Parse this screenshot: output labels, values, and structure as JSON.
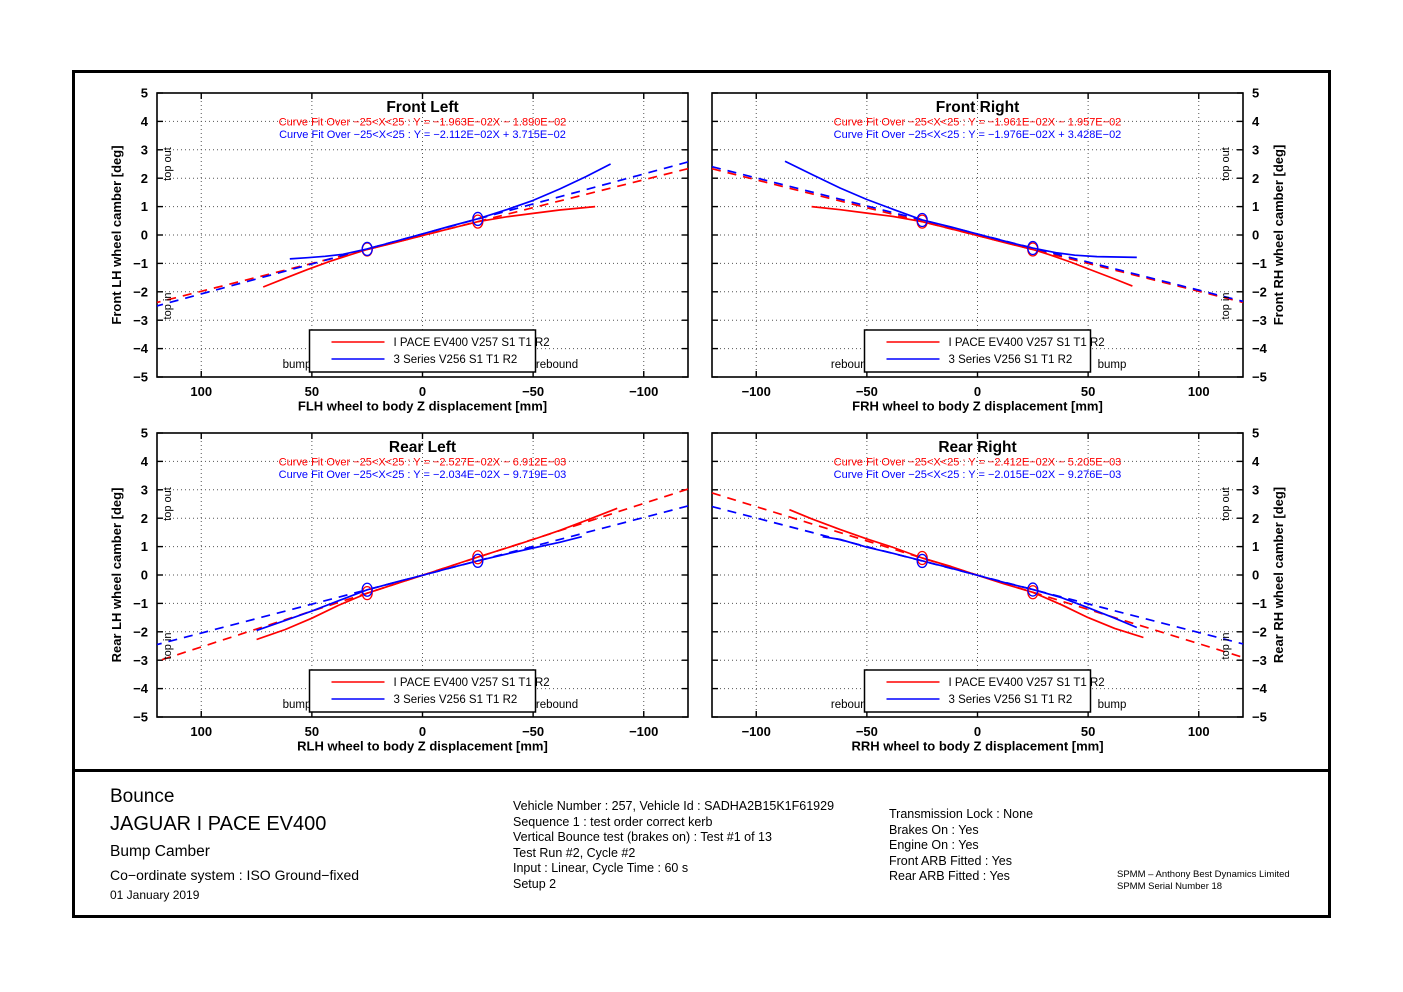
{
  "colors": {
    "ipace": "#ff0000",
    "series3": "#0000ff",
    "axis": "#000000",
    "grid": "#555555"
  },
  "chart_data": [
    {
      "type": "line",
      "title": "Front Left",
      "xlabel": "FLH wheel to body Z displacement [mm]",
      "ylabel": "Front LH wheel camber [deg]",
      "ylabel_side": "left",
      "x_reversed": true,
      "xlim": [
        -120,
        120
      ],
      "ylim": [
        -5,
        5
      ],
      "xticks": [
        -100,
        -50,
        0,
        50,
        100
      ],
      "yticks": [
        -5,
        -4,
        -3,
        -2,
        -1,
        0,
        1,
        2,
        3,
        4,
        5
      ],
      "grid": true,
      "fit_window": [
        -25,
        25
      ],
      "left_label": "bump",
      "right_label": "rebound",
      "top_out_label": "top out",
      "top_in_label": "top in",
      "fit_lines": [
        {
          "color": "#ff0000",
          "text": "Curve Fit Over −25<X<25 : Y = −1.963E−02X − 1.890E−02",
          "slope": -0.01963,
          "intercept": -0.0189
        },
        {
          "color": "#0000ff",
          "text": "Curve Fit Over −25<X<25 : Y = −2.112E−02X + 3.715E−02",
          "slope": -0.02112,
          "intercept": 0.03715
        }
      ],
      "series": [
        {
          "name": "I PACE EV400 V257 S1 T1 R2",
          "color": "#ff0000",
          "points": [
            [
              72,
              -1.83
            ],
            [
              62,
              -1.52
            ],
            [
              52,
              -1.22
            ],
            [
              42,
              -0.93
            ],
            [
              32,
              -0.68
            ],
            [
              25,
              -0.51
            ],
            [
              12,
              -0.26
            ],
            [
              0,
              -0.02
            ],
            [
              -12,
              0.22
            ],
            [
              -25,
              0.47
            ],
            [
              -38,
              0.64
            ],
            [
              -50,
              0.76
            ],
            [
              -62,
              0.88
            ],
            [
              -78,
              1.0
            ]
          ]
        },
        {
          "name": "3 Series V256 S1 T1 R2",
          "color": "#0000ff",
          "points": [
            [
              60,
              -0.84
            ],
            [
              52,
              -0.8
            ],
            [
              44,
              -0.75
            ],
            [
              36,
              -0.68
            ],
            [
              25,
              -0.49
            ],
            [
              12,
              -0.22
            ],
            [
              0,
              0.04
            ],
            [
              -12,
              0.3
            ],
            [
              -25,
              0.57
            ],
            [
              -38,
              0.89
            ],
            [
              -50,
              1.22
            ],
            [
              -62,
              1.62
            ],
            [
              -74,
              2.06
            ],
            [
              -85,
              2.5
            ]
          ]
        }
      ]
    },
    {
      "type": "line",
      "title": "Front Right",
      "xlabel": "FRH wheel to body Z displacement [mm]",
      "ylabel": "Front RH wheel camber [deg]",
      "ylabel_side": "right",
      "x_reversed": false,
      "xlim": [
        -120,
        120
      ],
      "ylim": [
        -5,
        5
      ],
      "xticks": [
        -100,
        -50,
        0,
        50,
        100
      ],
      "yticks": [
        -5,
        -4,
        -3,
        -2,
        -1,
        0,
        1,
        2,
        3,
        4,
        5
      ],
      "grid": true,
      "fit_window": [
        -25,
        25
      ],
      "left_label": "rebound",
      "right_label": "bump",
      "top_out_label": "top out",
      "top_in_label": "top in",
      "fit_lines": [
        {
          "color": "#ff0000",
          "text": "Curve Fit Over −25<X<25 : Y = −1.961E−02X − 1.957E−02",
          "slope": -0.01961,
          "intercept": -0.01957
        },
        {
          "color": "#0000ff",
          "text": "Curve Fit Over −25<X<25 : Y = −1.976E−02X + 3.428E−02",
          "slope": -0.01976,
          "intercept": 0.03428
        }
      ],
      "series": [
        {
          "name": "I PACE EV400 V257 S1 T1 R2",
          "color": "#ff0000",
          "points": [
            [
              -75,
              1.0
            ],
            [
              -62,
              0.89
            ],
            [
              -50,
              0.77
            ],
            [
              -38,
              0.65
            ],
            [
              -25,
              0.47
            ],
            [
              -12,
              0.22
            ],
            [
              0,
              -0.02
            ],
            [
              12,
              -0.26
            ],
            [
              25,
              -0.51
            ],
            [
              32,
              -0.68
            ],
            [
              42,
              -0.95
            ],
            [
              52,
              -1.25
            ],
            [
              62,
              -1.55
            ],
            [
              70,
              -1.8
            ]
          ]
        },
        {
          "name": "3 Series V256 S1 T1 R2",
          "color": "#0000ff",
          "points": [
            [
              -87,
              2.6
            ],
            [
              -74,
              2.1
            ],
            [
              -62,
              1.65
            ],
            [
              -50,
              1.25
            ],
            [
              -38,
              0.9
            ],
            [
              -25,
              0.53
            ],
            [
              -12,
              0.28
            ],
            [
              0,
              0.03
            ],
            [
              12,
              -0.21
            ],
            [
              25,
              -0.46
            ],
            [
              36,
              -0.63
            ],
            [
              44,
              -0.71
            ],
            [
              54,
              -0.76
            ],
            [
              72,
              -0.79
            ]
          ]
        }
      ]
    },
    {
      "type": "line",
      "title": "Rear Left",
      "xlabel": "RLH wheel to body Z displacement [mm]",
      "ylabel": "Rear LH wheel camber [deg]",
      "ylabel_side": "left",
      "x_reversed": true,
      "xlim": [
        -120,
        120
      ],
      "ylim": [
        -5,
        5
      ],
      "xticks": [
        -100,
        -50,
        0,
        50,
        100
      ],
      "yticks": [
        -5,
        -4,
        -3,
        -2,
        -1,
        0,
        1,
        2,
        3,
        4,
        5
      ],
      "grid": true,
      "fit_window": [
        -25,
        25
      ],
      "left_label": "bump",
      "right_label": "rebound",
      "top_out_label": "top out",
      "top_in_label": "top in",
      "fit_lines": [
        {
          "color": "#ff0000",
          "text": "Curve Fit Over −25<X<25 : Y = −2.527E−02X − 6.912E−03",
          "slope": -0.02527,
          "intercept": -0.006912
        },
        {
          "color": "#0000ff",
          "text": "Curve Fit Over −25<X<25 : Y = −2.034E−02X − 9.719E−03",
          "slope": -0.02034,
          "intercept": -0.009719
        }
      ],
      "series": [
        {
          "name": "I PACE EV400 V257 S1 T1 R2",
          "color": "#ff0000",
          "points": [
            [
              75,
              -2.27
            ],
            [
              62,
              -1.92
            ],
            [
              50,
              -1.52
            ],
            [
              38,
              -1.07
            ],
            [
              25,
              -0.64
            ],
            [
              12,
              -0.31
            ],
            [
              0,
              -0.01
            ],
            [
              -12,
              0.3
            ],
            [
              -25,
              0.63
            ],
            [
              -38,
              0.95
            ],
            [
              -50,
              1.25
            ],
            [
              -62,
              1.57
            ],
            [
              -75,
              1.95
            ],
            [
              -88,
              2.35
            ]
          ]
        },
        {
          "name": "3 Series V256 S1 T1 R2",
          "color": "#0000ff",
          "points": [
            [
              75,
              -1.95
            ],
            [
              62,
              -1.6
            ],
            [
              50,
              -1.27
            ],
            [
              38,
              -0.91
            ],
            [
              25,
              -0.52
            ],
            [
              12,
              -0.25
            ],
            [
              0,
              -0.01
            ],
            [
              -12,
              0.24
            ],
            [
              -25,
              0.5
            ],
            [
              -38,
              0.74
            ],
            [
              -50,
              0.95
            ],
            [
              -62,
              1.15
            ],
            [
              -72,
              1.35
            ]
          ]
        }
      ]
    },
    {
      "type": "line",
      "title": "Rear Right",
      "xlabel": "RRH wheel to body Z displacement [mm]",
      "ylabel": "Rear RH wheel camber [deg]",
      "ylabel_side": "right",
      "x_reversed": false,
      "xlim": [
        -120,
        120
      ],
      "ylim": [
        -5,
        5
      ],
      "xticks": [
        -100,
        -50,
        0,
        50,
        100
      ],
      "yticks": [
        -5,
        -4,
        -3,
        -2,
        -1,
        0,
        1,
        2,
        3,
        4,
        5
      ],
      "grid": true,
      "fit_window": [
        -25,
        25
      ],
      "left_label": "rebound",
      "right_label": "bump",
      "top_out_label": "top out",
      "top_in_label": "top in",
      "fit_lines": [
        {
          "color": "#ff0000",
          "text": "Curve Fit Over −25<X<25 : Y = −2.412E−02X − 5.205E−03",
          "slope": -0.02412,
          "intercept": -0.005205
        },
        {
          "color": "#0000ff",
          "text": "Curve Fit Over −25<X<25 : Y = −2.015E−02X − 9.276E−03",
          "slope": -0.02015,
          "intercept": -0.009276
        }
      ],
      "series": [
        {
          "name": "I PACE EV400 V257 S1 T1 R2",
          "color": "#ff0000",
          "points": [
            [
              -85,
              2.3
            ],
            [
              -75,
              1.98
            ],
            [
              -62,
              1.6
            ],
            [
              -50,
              1.27
            ],
            [
              -38,
              0.97
            ],
            [
              -25,
              0.6
            ],
            [
              -12,
              0.3
            ],
            [
              0,
              -0.01
            ],
            [
              12,
              -0.31
            ],
            [
              25,
              -0.61
            ],
            [
              38,
              -1.05
            ],
            [
              50,
              -1.5
            ],
            [
              62,
              -1.88
            ],
            [
              75,
              -2.2
            ]
          ]
        },
        {
          "name": "3 Series V256 S1 T1 R2",
          "color": "#0000ff",
          "points": [
            [
              -70,
              1.35
            ],
            [
              -62,
              1.25
            ],
            [
              -50,
              0.98
            ],
            [
              -38,
              0.76
            ],
            [
              -25,
              0.5
            ],
            [
              -12,
              0.24
            ],
            [
              0,
              -0.01
            ],
            [
              12,
              -0.26
            ],
            [
              25,
              -0.51
            ],
            [
              38,
              -0.8
            ],
            [
              50,
              -1.15
            ],
            [
              62,
              -1.52
            ],
            [
              72,
              -1.85
            ]
          ]
        }
      ]
    }
  ],
  "footer": {
    "left": {
      "line1": "Bounce",
      "line2": "JAGUAR I PACE EV400",
      "line3": "Bump Camber",
      "line4": "Co−ordinate system : ISO Ground−fixed",
      "line5": "01 January 2019"
    },
    "middle_lines": [
      "Vehicle Number : 257, Vehicle Id : SADHA2B15K1F61929",
      "Sequence 1 : test order correct kerb",
      "Vertical Bounce test (brakes on) : Test #1 of 13",
      "Test Run #2, Cycle #2",
      "Input : Linear, Cycle Time : 60 s",
      "Setup 2"
    ],
    "right_lines": [
      "Transmission Lock : None",
      "Brakes On : Yes",
      "Engine On : Yes",
      "Front ARB Fitted : Yes",
      "Rear ARB Fitted : Yes"
    ],
    "spmm_lines": [
      "SPMM – Anthony Best Dynamics Limited",
      "SPMM Serial Number 18"
    ]
  }
}
